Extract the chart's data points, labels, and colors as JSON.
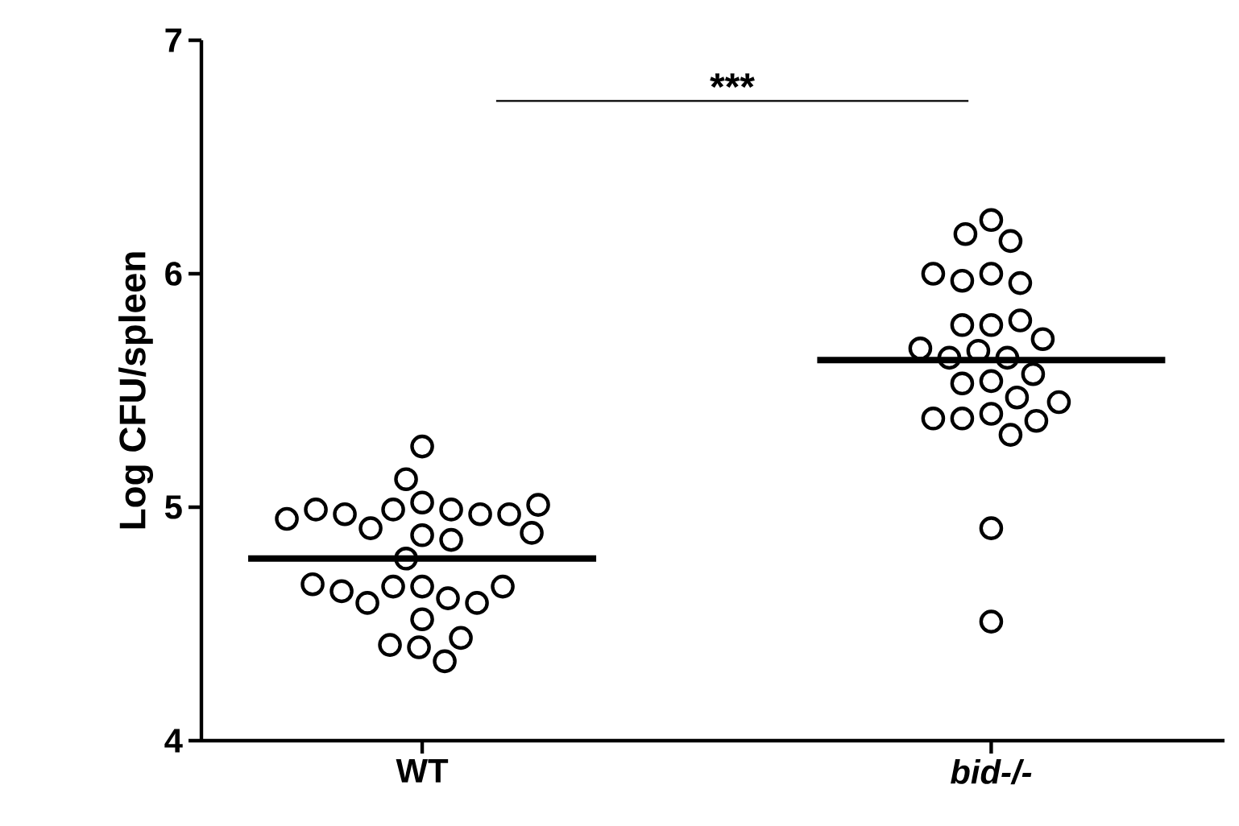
{
  "chart_data": {
    "type": "scatter",
    "ylabel": "Log CFU/spleen",
    "categories": [
      "WT",
      "*bid-/-*"
    ],
    "ylim": [
      4,
      7
    ],
    "yticks": [
      4,
      5,
      6,
      7
    ],
    "marker": "circle",
    "annotations": [
      "***"
    ],
    "ref_lines": [
      {
        "axis": "y",
        "value": 4.78,
        "color": "#000000"
      },
      {
        "axis": "y",
        "value": 5.63,
        "color": "#000000"
      }
    ],
    "series": [
      {
        "type": "scatter",
        "color": "#000000",
        "x": [
          "WT",
          "WT",
          "WT",
          "WT",
          "WT",
          "WT",
          "WT",
          "WT",
          "WT",
          "WT",
          "WT",
          "WT",
          "WT",
          "WT",
          "WT",
          "WT",
          "WT",
          "WT",
          "WT",
          "WT",
          "WT",
          "WT",
          "WT",
          "WT",
          "WT",
          "WT",
          "WT",
          "WT",
          "WT"
        ],
        "values": [
          5.26,
          5.02,
          4.99,
          4.99,
          4.91,
          4.88,
          4.97,
          4.97,
          4.97,
          4.99,
          5.01,
          4.95,
          4.89,
          4.86,
          4.78,
          5.12,
          4.66,
          4.66,
          4.61,
          4.59,
          4.52,
          4.59,
          4.64,
          4.66,
          4.67,
          4.4,
          4.34,
          4.41,
          4.44
        ]
      },
      {
        "type": "scatter",
        "color": "#000000",
        "x": [
          "*bid-/-*",
          "*bid-/-*",
          "*bid-/-*",
          "*bid-/-*",
          "*bid-/-*",
          "*bid-/-*",
          "*bid-/-*",
          "*bid-/-*",
          "*bid-/-*",
          "*bid-/-*",
          "*bid-/-*",
          "*bid-/-*",
          "*bid-/-*",
          "*bid-/-*",
          "*bid-/-*",
          "*bid-/-*",
          "*bid-/-*",
          "*bid-/-*",
          "*bid-/-*",
          "*bid-/-*",
          "*bid-/-*",
          "*bid-/-*",
          "*bid-/-*",
          "*bid-/-*",
          "*bid-/-*",
          "*bid-/-*",
          "*bid-/-*"
        ],
        "values": [
          6.23,
          6.17,
          6.14,
          6.0,
          5.97,
          5.96,
          6.0,
          5.78,
          5.78,
          5.8,
          5.72,
          5.67,
          5.64,
          5.64,
          5.68,
          5.54,
          5.53,
          5.57,
          5.47,
          5.4,
          5.38,
          5.31,
          5.37,
          5.38,
          5.45,
          4.91,
          4.51
        ]
      }
    ]
  }
}
